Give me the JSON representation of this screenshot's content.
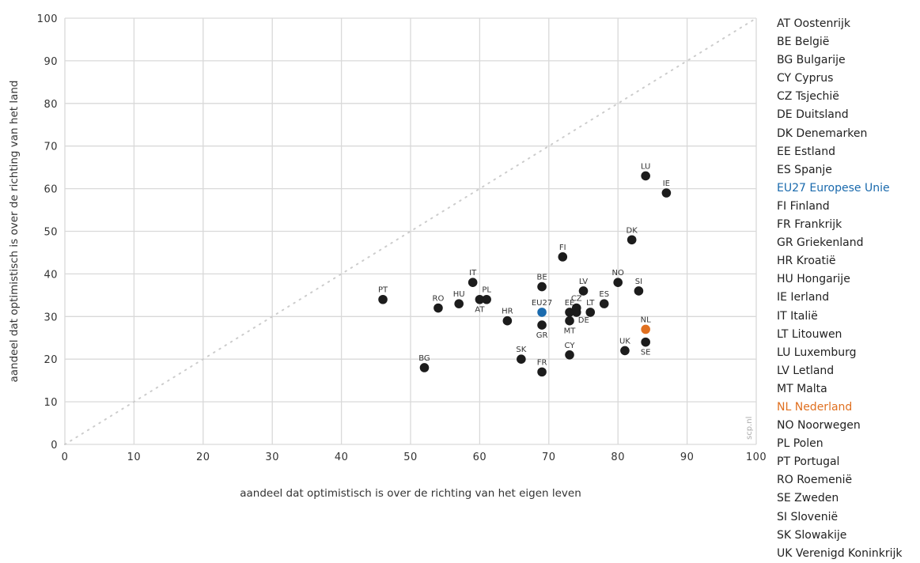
{
  "chart_data": {
    "type": "scatter",
    "title": "",
    "xlabel": "aandeel dat optimistisch is over de richting van het eigen leven",
    "ylabel": "aandeel dat optimistisch is over de richting van het land",
    "xlim": [
      0,
      100
    ],
    "ylim": [
      0,
      100
    ],
    "x_ticks": [
      "0",
      "10",
      "20",
      "30",
      "40",
      "50",
      "60",
      "70",
      "80",
      "90",
      "100"
    ],
    "y_ticks": [
      "0",
      "10",
      "20",
      "30",
      "40",
      "50",
      "60",
      "70",
      "80",
      "90",
      "100"
    ],
    "grid": true,
    "diagonal_reference_line": true,
    "watermark": "scp.nl",
    "colors": {
      "default": "#1c1c1c",
      "EU27": "#1a6aad",
      "NL": "#e07020",
      "grid": "#d9d9d9",
      "diagonal": "#cccccc"
    },
    "points": [
      {
        "label": "PT",
        "x": 46,
        "y": 34,
        "pos": "above"
      },
      {
        "label": "BG",
        "x": 52,
        "y": 18,
        "pos": "above"
      },
      {
        "label": "RO",
        "x": 54,
        "y": 32,
        "pos": "above"
      },
      {
        "label": "HU",
        "x": 57,
        "y": 33,
        "pos": "above"
      },
      {
        "label": "IT",
        "x": 59,
        "y": 38,
        "pos": "above"
      },
      {
        "label": "AT",
        "x": 60,
        "y": 34,
        "pos": "below"
      },
      {
        "label": "PL",
        "x": 61,
        "y": 34,
        "pos": "above"
      },
      {
        "label": "HR",
        "x": 64,
        "y": 29,
        "pos": "above"
      },
      {
        "label": "SK",
        "x": 66,
        "y": 20,
        "pos": "above"
      },
      {
        "label": "BE",
        "x": 69,
        "y": 37,
        "pos": "above"
      },
      {
        "label": "EU27",
        "x": 69,
        "y": 31,
        "pos": "above",
        "highlight": "EU27"
      },
      {
        "label": "GR",
        "x": 69,
        "y": 28,
        "pos": "below"
      },
      {
        "label": "FR",
        "x": 69,
        "y": 17,
        "pos": "above"
      },
      {
        "label": "FI",
        "x": 72,
        "y": 44,
        "pos": "above"
      },
      {
        "label": "EE",
        "x": 73,
        "y": 31,
        "pos": "above"
      },
      {
        "label": "MT",
        "x": 73,
        "y": 29,
        "pos": "below"
      },
      {
        "label": "CY",
        "x": 73,
        "y": 21,
        "pos": "above"
      },
      {
        "label": "CZ",
        "x": 74,
        "y": 32,
        "pos": "above"
      },
      {
        "label": "DE",
        "x": 74,
        "y": 31,
        "pos": "belowright"
      },
      {
        "label": "LV",
        "x": 75,
        "y": 36,
        "pos": "above"
      },
      {
        "label": "LT",
        "x": 76,
        "y": 31,
        "pos": "above"
      },
      {
        "label": "ES",
        "x": 78,
        "y": 33,
        "pos": "above"
      },
      {
        "label": "NO",
        "x": 80,
        "y": 38,
        "pos": "above"
      },
      {
        "label": "UK",
        "x": 81,
        "y": 22,
        "pos": "above"
      },
      {
        "label": "DK",
        "x": 82,
        "y": 48,
        "pos": "above"
      },
      {
        "label": "SI",
        "x": 83,
        "y": 36,
        "pos": "above"
      },
      {
        "label": "LU",
        "x": 84,
        "y": 63,
        "pos": "above"
      },
      {
        "label": "NL",
        "x": 84,
        "y": 27,
        "pos": "above",
        "highlight": "NL"
      },
      {
        "label": "SE",
        "x": 84,
        "y": 24,
        "pos": "below"
      },
      {
        "label": "IE",
        "x": 87,
        "y": 59,
        "pos": "above"
      }
    ]
  },
  "legend": [
    {
      "text": "AT Oostenrijk"
    },
    {
      "text": "BE België"
    },
    {
      "text": "BG Bulgarije"
    },
    {
      "text": "CY Cyprus"
    },
    {
      "text": "CZ Tsjechië"
    },
    {
      "text": "DE Duitsland"
    },
    {
      "text": "DK Denemarken"
    },
    {
      "text": "EE Estland"
    },
    {
      "text": "ES Spanje"
    },
    {
      "text": "EU27 Europese Unie",
      "highlight": "EU27"
    },
    {
      "text": "FI Finland"
    },
    {
      "text": "FR Frankrijk"
    },
    {
      "text": "GR Griekenland"
    },
    {
      "text": "HR Kroatië"
    },
    {
      "text": "HU Hongarije"
    },
    {
      "text": "IE Ierland"
    },
    {
      "text": "IT Italië"
    },
    {
      "text": "LT Litouwen"
    },
    {
      "text": "LU Luxemburg"
    },
    {
      "text": "LV Letland"
    },
    {
      "text": "MT Malta"
    },
    {
      "text": "NL Nederland",
      "highlight": "NL"
    },
    {
      "text": "NO Noorwegen"
    },
    {
      "text": "PL Polen"
    },
    {
      "text": "PT Portugal"
    },
    {
      "text": "RO Roemenië"
    },
    {
      "text": "SE Zweden"
    },
    {
      "text": "SI Slovenië"
    },
    {
      "text": "SK Slowakije"
    },
    {
      "text": "UK Verenigd Koninkrijk"
    }
  ]
}
